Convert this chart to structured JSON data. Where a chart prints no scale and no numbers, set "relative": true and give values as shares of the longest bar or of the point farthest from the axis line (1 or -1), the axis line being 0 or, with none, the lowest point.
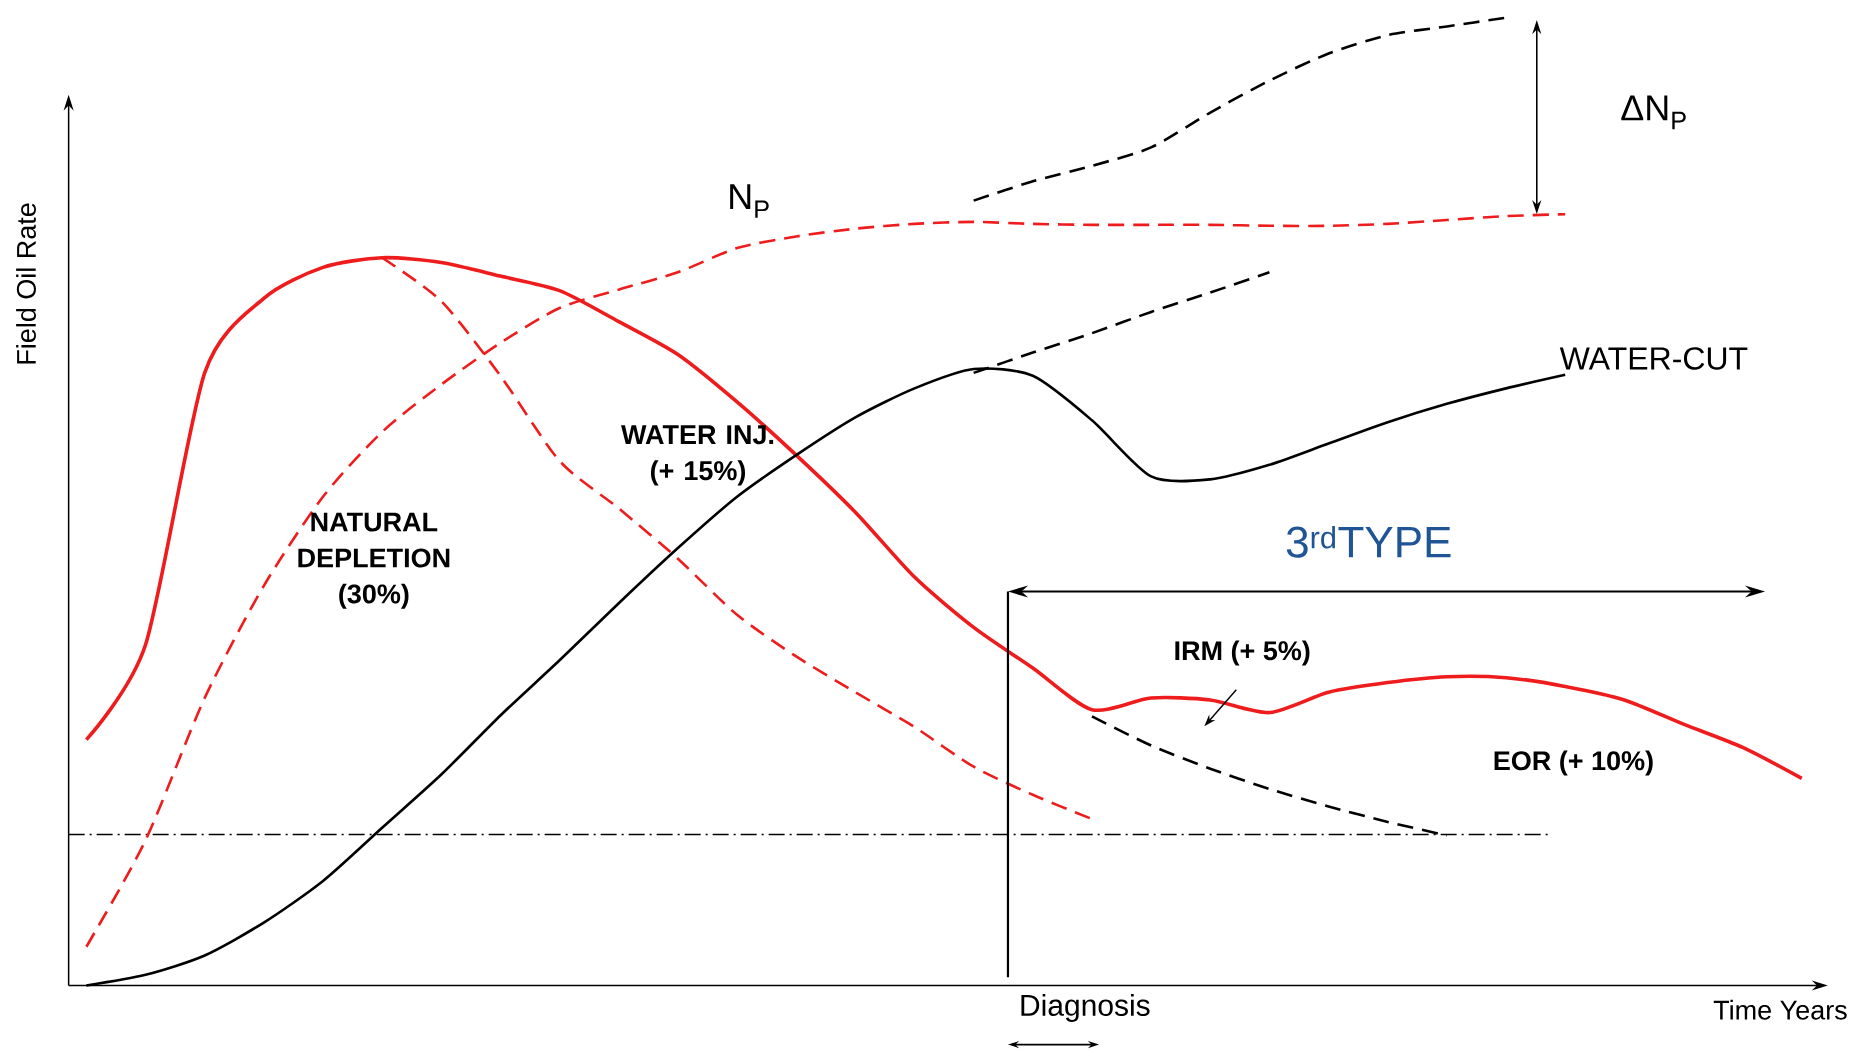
{
  "chart_data": {
    "type": "line",
    "relative": true,
    "xlabel": "Time Years",
    "ylabel": "Field Oil Rate",
    "categories": [
      null,
      null,
      null,
      null,
      null,
      null,
      null,
      null,
      null,
      null,
      null,
      null,
      null,
      null,
      null,
      null,
      null,
      null,
      null,
      null,
      null,
      null,
      null,
      null,
      null,
      null,
      null,
      null,
      null,
      null
    ],
    "series": [
      {
        "color": "#ee1c1c",
        "line_style": "solid",
        "values": [
          0.254,
          0.352,
          0.633,
          0.71,
          0.742,
          0.752,
          0.747,
          0.733,
          0.718,
          0.686,
          0.652,
          0.603,
          0.548,
          0.489,
          0.422,
          0.37,
          0.328,
          0.285,
          0.297,
          0.295,
          0.282,
          0.303,
          0.313,
          0.319,
          0.318,
          0.309,
          0.295,
          0.27,
          0.246,
          0.214
        ]
      },
      {
        "name": "N$_{P}$",
        "color": "#ee1c1c",
        "line_style": "dashed",
        "values": [
          0.04,
          0.15,
          0.297,
          0.413,
          0.505,
          0.572,
          0.621,
          0.664,
          0.7,
          0.719,
          0.737,
          0.762,
          0.774,
          0.782,
          0.787,
          0.789,
          0.787,
          0.786,
          0.786,
          0.786,
          0.785,
          0.785,
          0.787,
          0.791,
          0.795,
          0.797,
          null,
          null,
          null,
          null
        ]
      },
      {
        "color": "#ee1c1c",
        "line_style": "dashed",
        "values": [
          null,
          null,
          null,
          null,
          null,
          0.752,
          0.707,
          0.63,
          0.542,
          0.493,
          0.441,
          0.383,
          0.34,
          0.303,
          0.267,
          0.226,
          0.197,
          0.172,
          null,
          null,
          null,
          null,
          null,
          null,
          null,
          null,
          null,
          null,
          null,
          null
        ]
      },
      {
        "name": "WATER-CUT",
        "color": "#000000",
        "line_style": "solid",
        "values": [
          0.0,
          0.011,
          0.031,
          0.065,
          0.108,
          0.163,
          0.218,
          0.279,
          0.336,
          0.395,
          0.452,
          0.505,
          0.548,
          0.587,
          0.617,
          0.637,
          0.63,
          0.584,
          0.526,
          0.523,
          0.538,
          0.56,
          0.582,
          0.601,
          0.617,
          0.631,
          null,
          null,
          null,
          null
        ]
      },
      {
        "color": "#000000",
        "line_style": "dashed",
        "values": [
          null,
          null,
          null,
          null,
          null,
          null,
          null,
          null,
          null,
          null,
          null,
          null,
          null,
          null,
          null,
          0.633,
          0.654,
          0.674,
          0.696,
          0.716,
          0.737,
          null,
          null,
          null,
          null,
          null,
          null,
          null,
          null,
          null
        ]
      },
      {
        "color": "#000000",
        "line_style": "dashed",
        "values": [
          null,
          null,
          null,
          null,
          null,
          null,
          null,
          null,
          null,
          null,
          null,
          null,
          null,
          null,
          null,
          0.811,
          0.831,
          0.847,
          0.866,
          0.902,
          0.935,
          0.963,
          0.982,
          0.991,
          1.0,
          null,
          null,
          null,
          null,
          null
        ]
      },
      {
        "color": "#000000",
        "line_style": "dashed",
        "values": [
          null,
          null,
          null,
          null,
          null,
          null,
          null,
          null,
          null,
          null,
          null,
          null,
          null,
          null,
          null,
          null,
          null,
          0.278,
          0.248,
          0.224,
          0.203,
          0.185,
          0.169,
          0.155,
          null,
          null,
          null,
          null,
          null,
          null
        ]
      }
    ],
    "ref_lines": [
      {
        "axis": "y",
        "value": 0.156,
        "color": "#000000",
        "line_style": "dashdot"
      }
    ],
    "annotations": [
      "ΔN$_{P}$",
      "NATURAL DEPLETION (30%)",
      "WATER INJ. (+ 15%)",
      "3$^{rd}$TYPE",
      "IRM (+ 5%)",
      "EOR (+ 10%)",
      "Diagnosis"
    ]
  }
}
